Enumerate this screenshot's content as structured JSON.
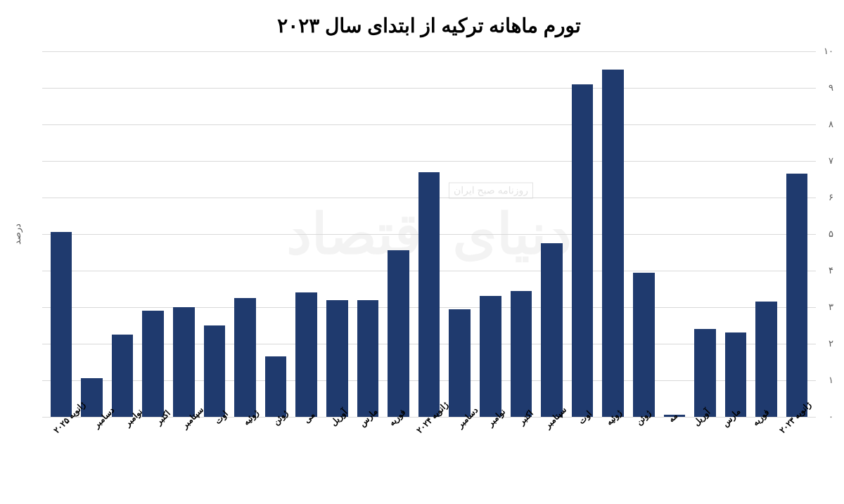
{
  "chart": {
    "type": "bar",
    "title": "تورم ماهانه ترکیه از ابتدای سال ۲۰۲۳",
    "title_fontsize": 28,
    "title_color": "#000000",
    "ylabel": "درصد",
    "ylabel_fontsize": 13,
    "ylabel_color": "#5a5a5a",
    "background_color": "#ffffff",
    "grid_color": "#d9d9d9",
    "bar_color": "#1f3a6e",
    "bar_width": 0.7,
    "ylim": [
      0,
      10
    ],
    "ytick_step": 1,
    "yticks": [
      "۰",
      "۱",
      "۲",
      "۳",
      "۴",
      "۵",
      "۶",
      "۷",
      "۸",
      "۹",
      "۱۰"
    ],
    "categories": [
      "ژانویه ۲۰۲۳",
      "فوریه",
      "مارس",
      "آوریل",
      "مه",
      "ژوئن",
      "ژوئیه",
      "اوت",
      "سپتامبر",
      "اکتبر",
      "نوامبر",
      "دسامبر",
      "ژانویه ۲۰۲۴",
      "فوریه",
      "مارس",
      "آوریل",
      "مى",
      "ژوئن",
      "ژوئیه",
      "اوت",
      "سپتامبر",
      "اکتبر",
      "نوامبر",
      "دسامبر",
      "ژانویه ۲۰۲۵"
    ],
    "values": [
      6.65,
      3.15,
      2.3,
      2.4,
      0.05,
      3.95,
      9.5,
      9.1,
      4.75,
      3.45,
      3.3,
      2.95,
      6.7,
      4.55,
      3.2,
      3.2,
      3.4,
      1.65,
      3.25,
      2.5,
      3.0,
      2.9,
      2.25,
      1.05,
      5.05
    ],
    "xlabel_fontsize": 12,
    "xlabel_color": "#000000",
    "xlabel_rotation": -45,
    "watermark_main": "دنیای اقتصاد",
    "watermark_sub": "روزنامه صبح ایران"
  }
}
